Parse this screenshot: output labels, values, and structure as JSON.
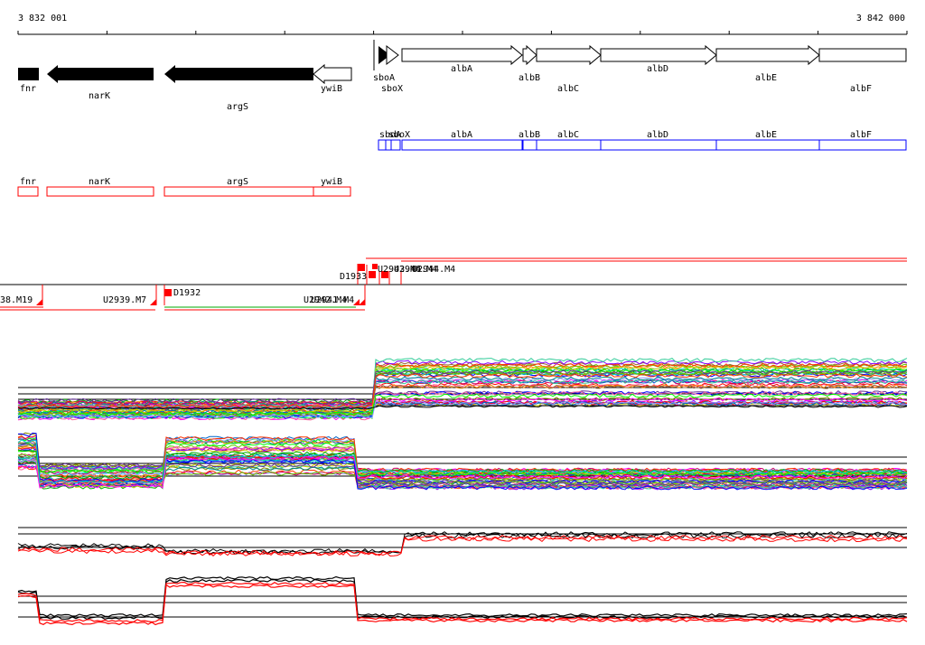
{
  "ruler": {
    "start_label": "3 832 001",
    "end_label": "3 842 000"
  },
  "genes_top_minus": [
    {
      "name": "fnr",
      "style": "solid"
    },
    {
      "name": "narK",
      "style": "solid"
    },
    {
      "name": "argS",
      "style": "solid"
    },
    {
      "name": "ywiB",
      "style": "outline"
    }
  ],
  "genes_top_plus": [
    {
      "name": "sboA",
      "style": "solid"
    },
    {
      "name": "sboX"
    },
    {
      "name": "albA"
    },
    {
      "name": "albB"
    },
    {
      "name": "albC"
    },
    {
      "name": "albD"
    },
    {
      "name": "albE"
    },
    {
      "name": "albF"
    }
  ],
  "blue_track": [
    "sboA",
    "sboX",
    "albA",
    "albB",
    "albC",
    "albD",
    "albE",
    "albF"
  ],
  "red_track": [
    "fnr",
    "narK",
    "argS",
    "ywiB"
  ],
  "upper_features": [
    "D1933",
    "U2943.M4",
    "U2944.M4",
    "U2946.M4"
  ],
  "lower_features": [
    "38.M19",
    "U2939.M7",
    "D1932",
    "U2942.M4",
    "U2941.M4"
  ],
  "colors": {
    "blue": "#0000ff",
    "red": "#ff0000",
    "green": "#00aa00",
    "black": "#000000"
  }
}
